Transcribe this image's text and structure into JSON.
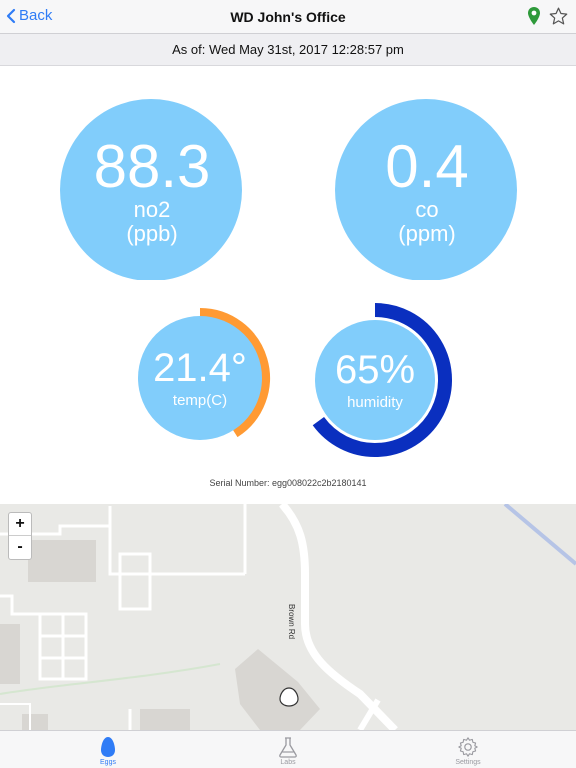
{
  "navbar": {
    "back_label": "Back",
    "title": "WD John's Office"
  },
  "status": {
    "as_of": "As of: Wed May 31st, 2017 12:28:57 pm"
  },
  "gauges": {
    "no2": {
      "value": "88.3",
      "label": "no2",
      "unit": "(ppb)",
      "level": 0.13,
      "color": "#f9c20a"
    },
    "co": {
      "value": "0.4",
      "label": "co",
      "unit": "(ppm)",
      "level": 0.02,
      "color": "#1f8a1f"
    },
    "temp": {
      "value": "21.4°",
      "label": "temp(C)",
      "level": 0.41,
      "color": "#ff9a33"
    },
    "humidity": {
      "value": "65%",
      "label": "humidity",
      "level": 0.65,
      "color": "#0a2fbf"
    }
  },
  "gauge_fill_color": "#81cdfb",
  "serial": "Serial Number: egg008022c2b2180141",
  "map": {
    "road_label": "Brown Rd",
    "zoom_in": "+",
    "zoom_out": "-"
  },
  "tabs": [
    {
      "label": "Eggs",
      "icon": "egg-icon",
      "active": true
    },
    {
      "label": "Labs",
      "icon": "flask-icon",
      "active": false
    },
    {
      "label": "Settings",
      "icon": "gear-icon",
      "active": false
    }
  ],
  "colors": {
    "accent": "#2f7cf6",
    "pin": "#2e9a3a"
  }
}
